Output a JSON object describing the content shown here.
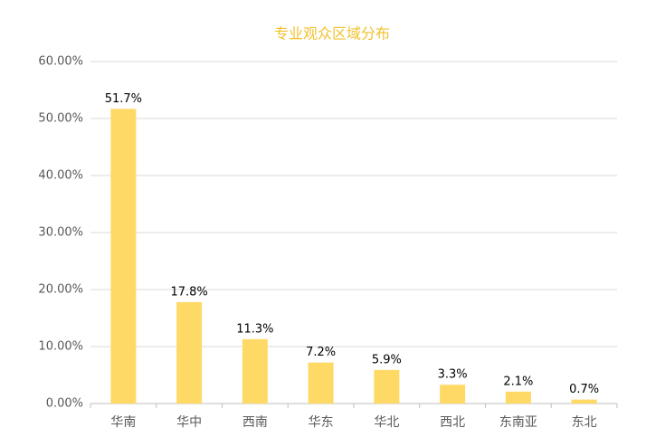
{
  "chart_data": {
    "type": "bar",
    "title": "专业观众区域分布",
    "categories": [
      "华南",
      "华中",
      "西南",
      "华东",
      "华北",
      "西北",
      "东南亚",
      "东北"
    ],
    "values": [
      51.7,
      17.8,
      11.3,
      7.2,
      5.9,
      3.3,
      2.1,
      0.7
    ],
    "value_labels": [
      "51.7%",
      "17.8%",
      "11.3%",
      "7.2%",
      "5.9%",
      "3.3%",
      "2.1%",
      "0.7%"
    ],
    "color": "#ffd966",
    "ylim": [
      0,
      60
    ],
    "yticks": [
      {
        "value": 0,
        "label": "0.00%"
      },
      {
        "value": 10,
        "label": "10.00%"
      },
      {
        "value": 20,
        "label": "20.00%"
      },
      {
        "value": 30,
        "label": "30.00%"
      },
      {
        "value": 40,
        "label": "40.00%"
      },
      {
        "value": 50,
        "label": "50.00%"
      },
      {
        "value": 60,
        "label": "60.00%"
      }
    ],
    "grid": true
  }
}
